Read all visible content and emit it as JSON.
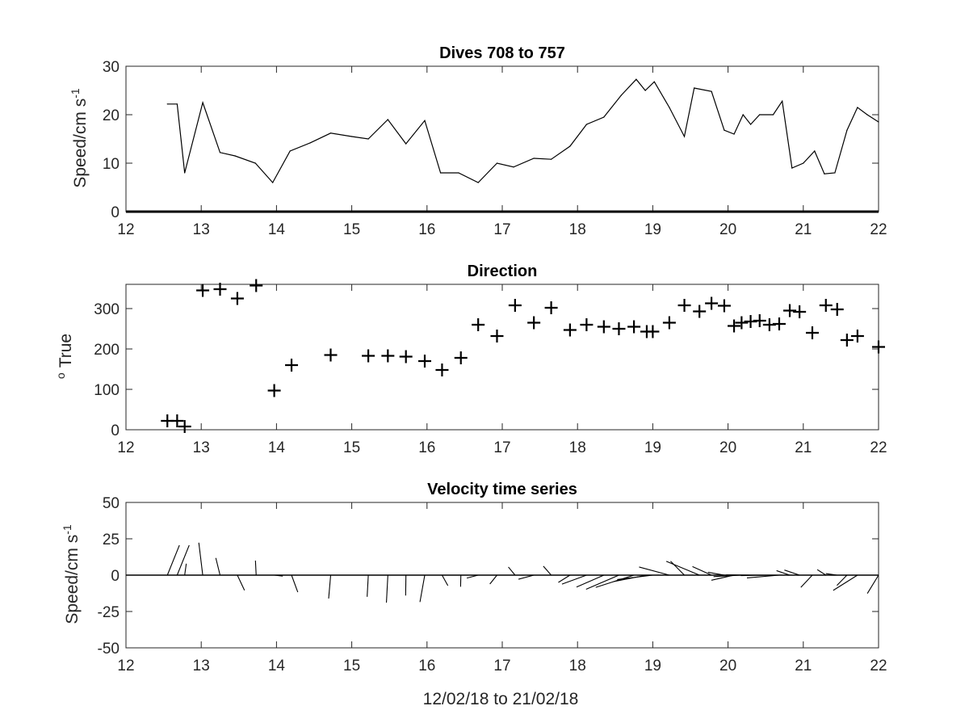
{
  "figure": {
    "xlabel": "12/02/18 to 21/02/18"
  },
  "chart_data": [
    {
      "type": "line",
      "title": "Dives 708 to 757",
      "ylabel": "Speed/cm s",
      "ylabel_superscript": "-1",
      "xlim": [
        12,
        22
      ],
      "ylim": [
        0,
        30
      ],
      "xticks": [
        "12",
        "13",
        "14",
        "15",
        "16",
        "17",
        "18",
        "19",
        "20",
        "21",
        "22"
      ],
      "yticks": [
        "0",
        "10",
        "20",
        "30"
      ],
      "grid": false,
      "line_color": "#000000",
      "series": [
        {
          "x": [
            12.55,
            12.68,
            12.78,
            13.02,
            13.25,
            13.45,
            13.72,
            13.95,
            14.18,
            14.45,
            14.72,
            15.0,
            15.22,
            15.48,
            15.72,
            15.97,
            16.18,
            16.42,
            16.68,
            16.93,
            17.15,
            17.42,
            17.65,
            17.9,
            18.12,
            18.35,
            18.58,
            18.78,
            18.9,
            19.02,
            19.22,
            19.42,
            19.55,
            19.78,
            19.95,
            20.08,
            20.2,
            20.3,
            20.42,
            20.6,
            20.72,
            20.85,
            21.0,
            21.15,
            21.28,
            21.42,
            21.58,
            21.72,
            21.85,
            22.0
          ],
          "y": [
            22.2,
            22.2,
            8.0,
            22.5,
            12.2,
            11.5,
            10.0,
            6.0,
            12.5,
            14.2,
            16.2,
            15.5,
            15.0,
            19.0,
            14.0,
            18.8,
            8.0,
            8.0,
            6.0,
            10.0,
            9.2,
            11.0,
            10.8,
            13.5,
            18.0,
            19.5,
            24.0,
            27.3,
            25.0,
            26.8,
            21.5,
            15.5,
            25.5,
            24.8,
            16.8,
            16.0,
            20.0,
            18.0,
            20.0,
            20.0,
            22.8,
            9.0,
            10.0,
            12.5,
            7.8,
            8.0,
            16.8,
            21.5,
            20.0,
            18.5
          ]
        }
      ]
    },
    {
      "type": "scatter",
      "title": "Direction",
      "ylabel": "True",
      "ylabel_superscript": "o",
      "marker": "+",
      "xlim": [
        12,
        22
      ],
      "ylim": [
        0,
        360
      ],
      "xticks": [
        "12",
        "13",
        "14",
        "15",
        "16",
        "17",
        "18",
        "19",
        "20",
        "21",
        "22"
      ],
      "yticks": [
        "0",
        "100",
        "200",
        "300"
      ],
      "grid": false,
      "series": [
        {
          "x": [
            12.55,
            12.68,
            12.78,
            13.02,
            13.25,
            13.48,
            13.73,
            13.97,
            14.2,
            14.72,
            15.22,
            15.48,
            15.72,
            15.97,
            16.2,
            16.45,
            16.68,
            16.93,
            17.17,
            17.42,
            17.65,
            17.9,
            18.12,
            18.35,
            18.55,
            18.75,
            18.92,
            19.0,
            19.22,
            19.42,
            19.62,
            19.78,
            19.95,
            20.08,
            20.18,
            20.3,
            20.42,
            20.55,
            20.68,
            20.82,
            20.95,
            21.12,
            21.3,
            21.45,
            21.58,
            21.72,
            22.0
          ],
          "y": [
            22,
            22,
            8,
            345,
            348,
            325,
            357,
            97,
            160,
            185,
            183,
            183,
            181,
            170,
            148,
            178,
            260,
            232,
            308,
            265,
            302,
            247,
            260,
            255,
            250,
            255,
            243,
            243,
            265,
            308,
            293,
            313,
            307,
            257,
            265,
            268,
            270,
            260,
            262,
            295,
            292,
            240,
            308,
            298,
            222,
            232,
            205
          ]
        }
      ]
    },
    {
      "type": "stick",
      "title": "Velocity time series",
      "ylabel": "Speed/cm s",
      "ylabel_superscript": "-1",
      "xlim": [
        12,
        22
      ],
      "ylim": [
        -50,
        50
      ],
      "xticks": [
        "12",
        "13",
        "14",
        "15",
        "16",
        "17",
        "18",
        "19",
        "20",
        "21",
        "22"
      ],
      "yticks": [
        "-50",
        "-25",
        "0",
        "25",
        "50"
      ],
      "grid": false,
      "series": [
        {
          "x": [
            12.55,
            12.68,
            12.78,
            13.02,
            13.25,
            13.48,
            13.73,
            13.97,
            14.2,
            14.72,
            15.22,
            15.48,
            15.72,
            15.97,
            16.2,
            16.45,
            16.68,
            16.93,
            17.17,
            17.42,
            17.65,
            17.9,
            18.12,
            18.35,
            18.55,
            18.75,
            18.92,
            19.0,
            19.22,
            19.42,
            19.62,
            19.78,
            19.95,
            20.08,
            20.18,
            20.3,
            20.42,
            20.55,
            20.68,
            20.82,
            20.95,
            21.12,
            21.3,
            21.45,
            21.58,
            21.72,
            22.0
          ],
          "u": [
            8.3,
            8.3,
            1.1,
            -2.7,
            -2.9,
            4.9,
            -0.5,
            5.9,
            4.3,
            -1.4,
            -0.8,
            -1.0,
            -0.2,
            -3.3,
            4.0,
            -0.2,
            -7.8,
            -4.9,
            -4.6,
            -10.6,
            -5.4,
            -8.0,
            -16.9,
            -18.8,
            -22.6,
            -26.3,
            -22.8,
            -24.5,
            -20.8,
            -9.5,
            -22.8,
            -13.1,
            -11.2,
            -15.6,
            -19.3,
            -16.8,
            -18.8,
            -19.7,
            -22.2,
            -9.1,
            -10.4,
            -7.9,
            -5.9,
            -7.8,
            -6.9,
            -16.7,
            -7.7
          ],
          "v": [
            20.6,
            20.6,
            7.9,
            22.3,
            11.8,
            -10.4,
            10.0,
            -0.7,
            -11.7,
            -16.1,
            -14.9,
            -18.9,
            -14.0,
            -18.5,
            -7.2,
            -8.0,
            -2.0,
            -6.1,
            5.6,
            -2.8,
            6.2,
            -5.0,
            -6.2,
            -8.2,
            -9.7,
            -8.4,
            -4.4,
            -3.0,
            5.6,
            9.6,
            9.5,
            5.9,
            2.0,
            -3.5,
            -1.0,
            0.2,
            0.0,
            -0.3,
            -1.9,
            3.1,
            3.5,
            -8.4,
            3.8,
            1.1,
            -7.1,
            -10.5,
            -12.6
          ]
        }
      ]
    }
  ]
}
